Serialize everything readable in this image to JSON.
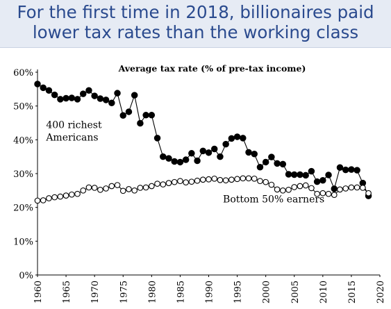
{
  "slide": {
    "headline": "For the first time in 2018, billionaires paid\nlower tax rates than the working class"
  },
  "chart_data": {
    "type": "line",
    "title": "Average tax rate (% of pre-tax income)",
    "xlim": [
      1960,
      2020
    ],
    "ylim": [
      0,
      60
    ],
    "x_ticks": [
      "1960",
      "1965",
      "1970",
      "1975",
      "1980",
      "1985",
      "1990",
      "1995",
      "2000",
      "2005",
      "2010",
      "2015",
      "2020"
    ],
    "y_ticks": [
      "0%",
      "10%",
      "20%",
      "30%",
      "40%",
      "50%",
      "60%"
    ],
    "grid": false,
    "x": [
      1960,
      1961,
      1962,
      1963,
      1964,
      1965,
      1966,
      1967,
      1968,
      1969,
      1970,
      1971,
      1972,
      1973,
      1974,
      1975,
      1976,
      1977,
      1978,
      1979,
      1980,
      1981,
      1982,
      1983,
      1984,
      1985,
      1986,
      1987,
      1988,
      1989,
      1990,
      1991,
      1992,
      1993,
      1994,
      1995,
      1996,
      1997,
      1998,
      1999,
      2000,
      2001,
      2002,
      2003,
      2004,
      2005,
      2006,
      2007,
      2008,
      2009,
      2010,
      2011,
      2012,
      2013,
      2014,
      2015,
      2016,
      2017,
      2018
    ],
    "series": [
      {
        "name": "400 richest Americans",
        "marker": "filled",
        "values": [
          56.5,
          55.4,
          54.6,
          53.3,
          52.0,
          52.3,
          52.4,
          52.0,
          53.6,
          54.6,
          53.0,
          52.2,
          51.8,
          50.9,
          53.8,
          47.2,
          48.3,
          53.2,
          44.9,
          47.3,
          47.3,
          40.5,
          35.0,
          34.5,
          33.6,
          33.4,
          34.1,
          36.0,
          33.8,
          36.7,
          36.2,
          37.3,
          35.0,
          38.7,
          40.4,
          40.9,
          40.5,
          36.3,
          35.8,
          31.9,
          33.4,
          34.9,
          33.0,
          32.8,
          29.8,
          29.7,
          29.7,
          29.5,
          30.7,
          27.6,
          28.0,
          29.6,
          25.5,
          31.8,
          31.1,
          31.2,
          31.0,
          27.2,
          23.4
        ]
      },
      {
        "name": "Bottom 50% earners",
        "marker": "hollow",
        "values": [
          22.0,
          22.1,
          22.7,
          23.0,
          23.2,
          23.5,
          23.8,
          24.0,
          25.0,
          25.9,
          25.8,
          25.2,
          25.6,
          26.3,
          26.6,
          24.9,
          25.4,
          25.0,
          25.8,
          25.9,
          26.3,
          27.0,
          26.8,
          27.2,
          27.5,
          27.8,
          27.4,
          27.6,
          27.9,
          28.2,
          28.3,
          28.5,
          28.1,
          28.0,
          28.2,
          28.4,
          28.6,
          28.6,
          28.5,
          27.8,
          27.5,
          26.7,
          25.3,
          25.0,
          25.2,
          26.0,
          26.3,
          26.5,
          25.7,
          24.0,
          24.2,
          24.0,
          23.7,
          25.3,
          25.6,
          25.9,
          25.9,
          25.8,
          24.2
        ]
      }
    ],
    "annotations": [
      {
        "text": "400 richest\nAmericans",
        "x": 1961.5,
        "y": 43.5
      },
      {
        "text": "Bottom 50% earners",
        "x": 1992.5,
        "y": 21.5
      }
    ]
  },
  "colors": {
    "header_bg": "#e6ebf4",
    "headline_text": "#2a4a8e",
    "series_dark": "#000000"
  }
}
